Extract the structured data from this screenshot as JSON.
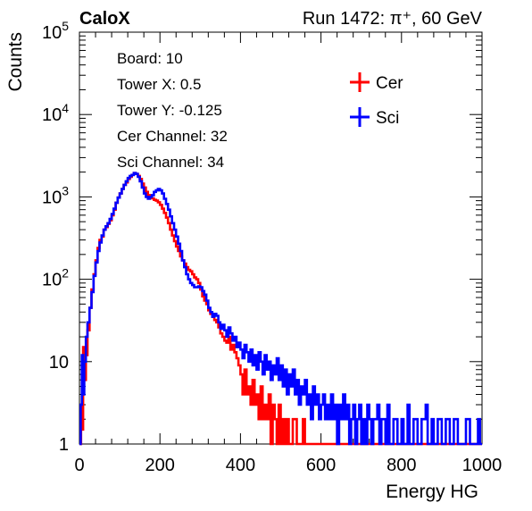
{
  "header": {
    "left_label": "CaloX",
    "run_label": "Run 1472:   π⁺, 60 GeV"
  },
  "info_box": {
    "lines": [
      "Board: 10",
      "Tower X: 0.5",
      "Tower Y: -0.125",
      "Cer Channel: 32",
      "Sci Channel: 34"
    ]
  },
  "colors": {
    "cer": "#ff0000",
    "sci": "#0000ff"
  },
  "chart_data": {
    "type": "line",
    "step": true,
    "title": "",
    "xlabel": "Energy HG",
    "ylabel": "Counts",
    "xlim": [
      0,
      1000
    ],
    "ylim": [
      1,
      100000
    ],
    "y_scale": "log",
    "grid": false,
    "legend_position": "top-right",
    "x_ticks": [
      "0",
      "200",
      "400",
      "600",
      "800",
      "1000"
    ],
    "y_ticks": [
      {
        "base": "1",
        "exp": ""
      },
      {
        "base": "10",
        "exp": ""
      },
      {
        "base": "10",
        "exp": "2"
      },
      {
        "base": "10",
        "exp": "3"
      },
      {
        "base": "10",
        "exp": "4"
      },
      {
        "base": "10",
        "exp": "5"
      }
    ],
    "series": [
      {
        "name": "Cer",
        "color": "#ff0000",
        "points": [
          [
            0,
            1
          ],
          [
            4,
            3
          ],
          [
            6,
            1.5
          ],
          [
            9,
            15
          ],
          [
            12,
            6
          ],
          [
            16,
            12
          ],
          [
            20,
            24
          ],
          [
            25,
            45
          ],
          [
            30,
            75
          ],
          [
            35,
            115
          ],
          [
            40,
            170
          ],
          [
            45,
            240
          ],
          [
            50,
            300
          ],
          [
            55,
            330
          ],
          [
            60,
            400
          ],
          [
            65,
            430
          ],
          [
            70,
            470
          ],
          [
            75,
            520
          ],
          [
            80,
            600
          ],
          [
            85,
            700
          ],
          [
            90,
            850
          ],
          [
            95,
            980
          ],
          [
            100,
            1100
          ],
          [
            105,
            1250
          ],
          [
            110,
            1400
          ],
          [
            115,
            1500
          ],
          [
            120,
            1650
          ],
          [
            125,
            1750
          ],
          [
            130,
            1850
          ],
          [
            135,
            1950
          ],
          [
            140,
            1900
          ],
          [
            145,
            1800
          ],
          [
            150,
            1650
          ],
          [
            155,
            1450
          ],
          [
            160,
            1300
          ],
          [
            165,
            1150
          ],
          [
            170,
            1050
          ],
          [
            175,
            1000
          ],
          [
            180,
            960
          ],
          [
            185,
            920
          ],
          [
            190,
            900
          ],
          [
            195,
            860
          ],
          [
            200,
            800
          ],
          [
            205,
            720
          ],
          [
            210,
            640
          ],
          [
            215,
            560
          ],
          [
            220,
            480
          ],
          [
            225,
            400
          ],
          [
            230,
            340
          ],
          [
            235,
            290
          ],
          [
            240,
            250
          ],
          [
            245,
            220
          ],
          [
            250,
            190
          ],
          [
            255,
            170
          ],
          [
            260,
            155
          ],
          [
            265,
            140
          ],
          [
            270,
            130
          ],
          [
            275,
            125
          ],
          [
            280,
            115
          ],
          [
            285,
            105
          ],
          [
            290,
            100
          ],
          [
            295,
            90
          ],
          [
            300,
            75
          ],
          [
            305,
            62
          ],
          [
            310,
            55
          ],
          [
            315,
            50
          ],
          [
            320,
            42
          ],
          [
            325,
            38
          ],
          [
            330,
            35
          ],
          [
            335,
            32
          ],
          [
            340,
            30
          ],
          [
            345,
            26
          ],
          [
            350,
            22
          ],
          [
            355,
            20
          ],
          [
            360,
            18
          ],
          [
            365,
            17
          ],
          [
            370,
            20
          ],
          [
            375,
            14
          ],
          [
            380,
            16
          ],
          [
            385,
            13
          ],
          [
            390,
            11
          ],
          [
            395,
            9
          ],
          [
            400,
            7
          ],
          [
            405,
            4
          ],
          [
            410,
            8
          ],
          [
            415,
            4
          ],
          [
            420,
            5
          ],
          [
            425,
            3
          ],
          [
            430,
            6
          ],
          [
            435,
            3
          ],
          [
            440,
            4
          ],
          [
            445,
            2
          ],
          [
            450,
            5
          ],
          [
            455,
            2
          ],
          [
            460,
            3
          ],
          [
            465,
            2
          ],
          [
            470,
            4
          ],
          [
            475,
            1
          ],
          [
            480,
            3
          ],
          [
            485,
            2
          ],
          [
            490,
            1
          ],
          [
            495,
            3
          ],
          [
            500,
            1
          ],
          [
            505,
            2
          ],
          [
            510,
            1
          ],
          [
            515,
            2
          ],
          [
            520,
            1
          ],
          [
            530,
            2
          ],
          [
            540,
            1
          ],
          [
            555,
            2
          ],
          [
            560,
            1
          ],
          [
            580,
            1
          ],
          [
            600,
            1
          ],
          [
            1000,
            1
          ]
        ]
      },
      {
        "name": "Sci",
        "color": "#0000ff",
        "points": [
          [
            0,
            1
          ],
          [
            3,
            3
          ],
          [
            6,
            12
          ],
          [
            9,
            4
          ],
          [
            12,
            10
          ],
          [
            16,
            20
          ],
          [
            20,
            30
          ],
          [
            25,
            45
          ],
          [
            30,
            70
          ],
          [
            35,
            110
          ],
          [
            40,
            160
          ],
          [
            45,
            220
          ],
          [
            50,
            280
          ],
          [
            55,
            340
          ],
          [
            60,
            400
          ],
          [
            65,
            440
          ],
          [
            70,
            480
          ],
          [
            75,
            540
          ],
          [
            80,
            620
          ],
          [
            85,
            720
          ],
          [
            90,
            850
          ],
          [
            95,
            980
          ],
          [
            100,
            1100
          ],
          [
            105,
            1250
          ],
          [
            110,
            1400
          ],
          [
            115,
            1550
          ],
          [
            120,
            1700
          ],
          [
            125,
            1800
          ],
          [
            130,
            1850
          ],
          [
            135,
            1950
          ],
          [
            140,
            1900
          ],
          [
            145,
            1750
          ],
          [
            150,
            1550
          ],
          [
            155,
            1300
          ],
          [
            160,
            1100
          ],
          [
            165,
            1000
          ],
          [
            170,
            950
          ],
          [
            175,
            1000
          ],
          [
            180,
            1050
          ],
          [
            185,
            1150
          ],
          [
            190,
            1200
          ],
          [
            195,
            1250
          ],
          [
            200,
            1200
          ],
          [
            205,
            1100
          ],
          [
            210,
            950
          ],
          [
            215,
            820
          ],
          [
            220,
            700
          ],
          [
            225,
            580
          ],
          [
            230,
            480
          ],
          [
            235,
            400
          ],
          [
            240,
            330
          ],
          [
            245,
            270
          ],
          [
            250,
            220
          ],
          [
            255,
            170
          ],
          [
            260,
            140
          ],
          [
            265,
            115
          ],
          [
            270,
            100
          ],
          [
            275,
            90
          ],
          [
            280,
            85
          ],
          [
            285,
            80
          ],
          [
            290,
            80
          ],
          [
            295,
            82
          ],
          [
            300,
            80
          ],
          [
            305,
            72
          ],
          [
            310,
            65
          ],
          [
            315,
            55
          ],
          [
            320,
            45
          ],
          [
            325,
            40
          ],
          [
            330,
            35
          ],
          [
            335,
            38
          ],
          [
            340,
            36
          ],
          [
            345,
            30
          ],
          [
            350,
            25
          ],
          [
            355,
            28
          ],
          [
            360,
            24
          ],
          [
            365,
            20
          ],
          [
            370,
            26
          ],
          [
            375,
            22
          ],
          [
            380,
            18
          ],
          [
            385,
            20
          ],
          [
            390,
            15
          ],
          [
            395,
            17
          ],
          [
            400,
            14
          ],
          [
            405,
            11
          ],
          [
            410,
            16
          ],
          [
            415,
            13
          ],
          [
            420,
            10
          ],
          [
            425,
            14
          ],
          [
            430,
            9
          ],
          [
            435,
            12
          ],
          [
            440,
            8
          ],
          [
            445,
            13
          ],
          [
            450,
            10
          ],
          [
            455,
            7
          ],
          [
            460,
            12
          ],
          [
            465,
            8
          ],
          [
            470,
            10
          ],
          [
            475,
            6
          ],
          [
            480,
            9
          ],
          [
            485,
            7
          ],
          [
            490,
            11
          ],
          [
            495,
            6
          ],
          [
            500,
            9
          ],
          [
            505,
            5
          ],
          [
            510,
            8
          ],
          [
            515,
            4
          ],
          [
            520,
            7
          ],
          [
            525,
            5
          ],
          [
            530,
            8
          ],
          [
            535,
            4
          ],
          [
            540,
            6
          ],
          [
            545,
            3
          ],
          [
            550,
            5
          ],
          [
            555,
            4
          ],
          [
            560,
            6
          ],
          [
            565,
            3
          ],
          [
            570,
            4
          ],
          [
            575,
            2
          ],
          [
            580,
            5
          ],
          [
            585,
            3
          ],
          [
            590,
            4
          ],
          [
            595,
            2
          ],
          [
            600,
            3
          ],
          [
            605,
            4
          ],
          [
            610,
            2
          ],
          [
            615,
            3
          ],
          [
            620,
            2
          ],
          [
            625,
            4
          ],
          [
            630,
            2
          ],
          [
            635,
            3
          ],
          [
            640,
            1
          ],
          [
            645,
            3
          ],
          [
            650,
            2
          ],
          [
            655,
            4
          ],
          [
            660,
            2
          ],
          [
            665,
            3
          ],
          [
            670,
            1
          ],
          [
            675,
            2
          ],
          [
            680,
            3
          ],
          [
            685,
            1
          ],
          [
            690,
            2
          ],
          [
            695,
            3
          ],
          [
            700,
            1
          ],
          [
            705,
            2
          ],
          [
            710,
            1
          ],
          [
            715,
            3
          ],
          [
            720,
            2
          ],
          [
            725,
            1
          ],
          [
            730,
            2
          ],
          [
            740,
            3
          ],
          [
            745,
            1
          ],
          [
            750,
            2
          ],
          [
            760,
            1
          ],
          [
            765,
            3
          ],
          [
            770,
            1
          ],
          [
            780,
            2
          ],
          [
            790,
            1
          ],
          [
            800,
            2
          ],
          [
            805,
            1
          ],
          [
            815,
            3
          ],
          [
            820,
            1
          ],
          [
            830,
            2
          ],
          [
            840,
            1
          ],
          [
            850,
            2
          ],
          [
            860,
            3
          ],
          [
            865,
            1
          ],
          [
            875,
            2
          ],
          [
            880,
            1
          ],
          [
            890,
            2
          ],
          [
            900,
            1
          ],
          [
            910,
            2
          ],
          [
            920,
            1
          ],
          [
            930,
            2
          ],
          [
            940,
            1
          ],
          [
            950,
            1
          ],
          [
            960,
            2
          ],
          [
            970,
            1
          ],
          [
            980,
            1
          ],
          [
            990,
            2
          ],
          [
            995,
            1
          ],
          [
            1000,
            1
          ]
        ]
      }
    ]
  }
}
